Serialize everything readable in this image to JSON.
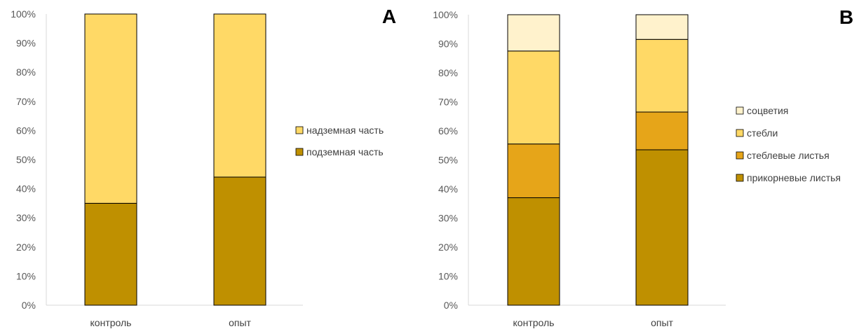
{
  "chart_data": [
    {
      "panel_label": "A",
      "type": "bar",
      "stacked": true,
      "categories": [
        "контроль",
        "опыт"
      ],
      "series": [
        {
          "name": "подземная часть",
          "values": [
            35,
            44
          ],
          "color": "#BF9000"
        },
        {
          "name": "надземная часть",
          "values": [
            65,
            56
          ],
          "color": "#FFD966"
        }
      ],
      "ylim": [
        0,
        100
      ],
      "yticks": [
        "0%",
        "10%",
        "20%",
        "30%",
        "40%",
        "50%",
        "60%",
        "70%",
        "80%",
        "90%",
        "100%"
      ],
      "grid": false,
      "legend_position": "right",
      "legend": [
        "надземная часть",
        "подземная часть"
      ]
    },
    {
      "panel_label": "B",
      "type": "bar",
      "stacked": true,
      "categories": [
        "контроль",
        "опыт"
      ],
      "series": [
        {
          "name": "прикорневые листья",
          "values": [
            37,
            53.5
          ],
          "color": "#BF9000"
        },
        {
          "name": "стеблевые листья",
          "values": [
            18.5,
            13
          ],
          "color": "#E6A519"
        },
        {
          "name": "стебли",
          "values": [
            32,
            25
          ],
          "color": "#FFD966"
        },
        {
          "name": "соцветия",
          "values": [
            12.5,
            8.5
          ],
          "color": "#FFF2CC"
        }
      ],
      "ylim": [
        0,
        100
      ],
      "yticks": [
        "0%",
        "10%",
        "20%",
        "30%",
        "40%",
        "50%",
        "60%",
        "70%",
        "80%",
        "90%",
        "100%"
      ],
      "grid": false,
      "legend_position": "right",
      "legend": [
        "соцветия",
        "стебли",
        "стеблевые листья",
        "прикорневые листья"
      ]
    }
  ]
}
